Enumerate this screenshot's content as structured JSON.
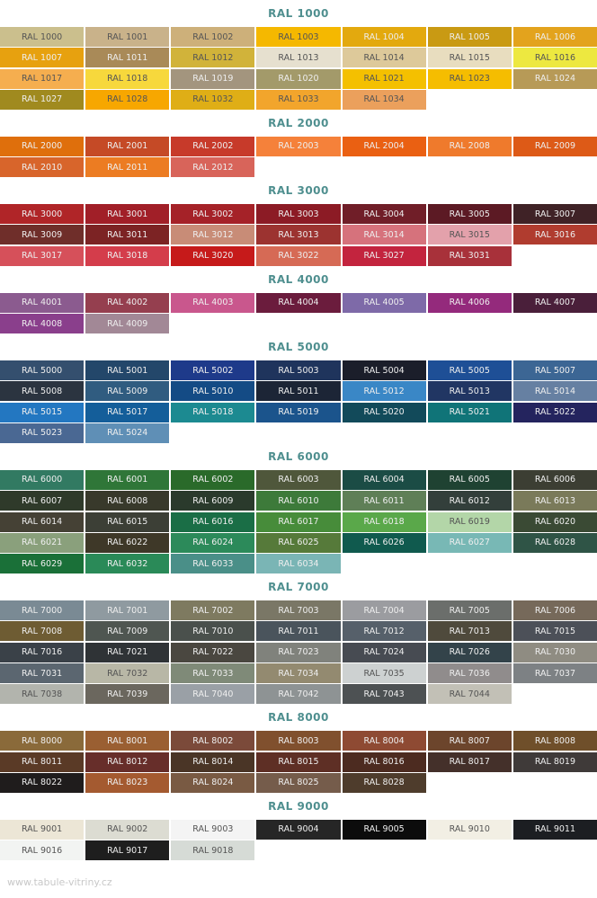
{
  "sections": [
    {
      "title": "RAL 1000",
      "swatches": [
        {
          "label": "RAL 1000",
          "color": "#cbbf8d"
        },
        {
          "label": "RAL 1001",
          "color": "#c9b28a"
        },
        {
          "label": "RAL 1002",
          "color": "#cdb07a"
        },
        {
          "label": "RAL 1003",
          "color": "#f5b800"
        },
        {
          "label": "RAL 1004",
          "color": "#e3a90e"
        },
        {
          "label": "RAL 1005",
          "color": "#c99a13"
        },
        {
          "label": "RAL 1006",
          "color": "#e3a31d"
        },
        {
          "label": "RAL 1007",
          "color": "#e7a10f"
        },
        {
          "label": "RAL 1011",
          "color": "#a98a58"
        },
        {
          "label": "RAL 1012",
          "color": "#d1b33a"
        },
        {
          "label": "RAL 1013",
          "color": "#e6e0cf"
        },
        {
          "label": "RAL 1014",
          "color": "#ddc99a"
        },
        {
          "label": "RAL 1015",
          "color": "#e8ddbf"
        },
        {
          "label": "RAL 1016",
          "color": "#ede840"
        },
        {
          "label": "RAL 1017",
          "color": "#f5ae4f"
        },
        {
          "label": "RAL 1018",
          "color": "#f7d83c"
        },
        {
          "label": "RAL 1019",
          "color": "#a3957e"
        },
        {
          "label": "RAL 1020",
          "color": "#a39a6a"
        },
        {
          "label": "RAL 1021",
          "color": "#f4c000"
        },
        {
          "label": "RAL 1023",
          "color": "#f5bd00"
        },
        {
          "label": "RAL 1024",
          "color": "#b79a57"
        },
        {
          "label": "RAL 1027",
          "color": "#a08a1f"
        },
        {
          "label": "RAL 1028",
          "color": "#f7a700"
        },
        {
          "label": "RAL 1032",
          "color": "#dfae16"
        },
        {
          "label": "RAL 1033",
          "color": "#f2a52c"
        },
        {
          "label": "RAL 1034",
          "color": "#eba05c"
        }
      ]
    },
    {
      "title": "RAL 2000",
      "swatches": [
        {
          "label": "RAL 2000",
          "color": "#df6f0c"
        },
        {
          "label": "RAL 2001",
          "color": "#c54a26"
        },
        {
          "label": "RAL 2002",
          "color": "#c73a2a"
        },
        {
          "label": "RAL 2003",
          "color": "#f5813a"
        },
        {
          "label": "RAL 2004",
          "color": "#ea6012"
        },
        {
          "label": "RAL 2008",
          "color": "#ef7a2c"
        },
        {
          "label": "RAL 2009",
          "color": "#dd5a17"
        },
        {
          "label": "RAL 2010",
          "color": "#d8652b"
        },
        {
          "label": "RAL 2011",
          "color": "#ec7c22"
        },
        {
          "label": "RAL 2012",
          "color": "#d8645a"
        }
      ]
    },
    {
      "title": "RAL 3000",
      "swatches": [
        {
          "label": "RAL 3000",
          "color": "#b02528"
        },
        {
          "label": "RAL 3001",
          "color": "#a11f28"
        },
        {
          "label": "RAL 3002",
          "color": "#a52228"
        },
        {
          "label": "RAL 3003",
          "color": "#8c1b25"
        },
        {
          "label": "RAL 3004",
          "color": "#701e28"
        },
        {
          "label": "RAL 3005",
          "color": "#5c1a24"
        },
        {
          "label": "RAL 3007",
          "color": "#3f2226"
        },
        {
          "label": "RAL 3009",
          "color": "#6f2e2a"
        },
        {
          "label": "RAL 3011",
          "color": "#7c2324"
        },
        {
          "label": "RAL 3012",
          "color": "#c88c77"
        },
        {
          "label": "RAL 3013",
          "color": "#9c3330"
        },
        {
          "label": "RAL 3014",
          "color": "#d6727c"
        },
        {
          "label": "RAL 3015",
          "color": "#e3a1ab"
        },
        {
          "label": "RAL 3016",
          "color": "#b03c2f"
        },
        {
          "label": "RAL 3017",
          "color": "#d6505a"
        },
        {
          "label": "RAL 3018",
          "color": "#d43d4b"
        },
        {
          "label": "RAL 3020",
          "color": "#c61a1a"
        },
        {
          "label": "RAL 3022",
          "color": "#d66a55"
        },
        {
          "label": "RAL 3027",
          "color": "#c3243e"
        },
        {
          "label": "RAL 3031",
          "color": "#a8313a"
        }
      ]
    },
    {
      "title": "RAL 4000",
      "swatches": [
        {
          "label": "RAL 4001",
          "color": "#8b5b8f"
        },
        {
          "label": "RAL 4002",
          "color": "#953f4f"
        },
        {
          "label": "RAL 4003",
          "color": "#c9578d"
        },
        {
          "label": "RAL 4004",
          "color": "#6b1c3d"
        },
        {
          "label": "RAL 4005",
          "color": "#7e6aa8"
        },
        {
          "label": "RAL 4006",
          "color": "#942a7c"
        },
        {
          "label": "RAL 4007",
          "color": "#4a1f3a"
        },
        {
          "label": "RAL 4008",
          "color": "#8a3f8c"
        },
        {
          "label": "RAL 4009",
          "color": "#a28896"
        }
      ]
    },
    {
      "title": "RAL 5000",
      "swatches": [
        {
          "label": "RAL 5000",
          "color": "#344f6e"
        },
        {
          "label": "RAL 5001",
          "color": "#23476a"
        },
        {
          "label": "RAL 5002",
          "color": "#1e3a8a"
        },
        {
          "label": "RAL 5003",
          "color": "#1f345c"
        },
        {
          "label": "RAL 5004",
          "color": "#1b1e2a"
        },
        {
          "label": "RAL 5005",
          "color": "#1e4f96"
        },
        {
          "label": "RAL 5007",
          "color": "#3c6694"
        },
        {
          "label": "RAL 5008",
          "color": "#2b3440"
        },
        {
          "label": "RAL 5009",
          "color": "#305c80"
        },
        {
          "label": "RAL 5010",
          "color": "#144b85"
        },
        {
          "label": "RAL 5011",
          "color": "#1c2536"
        },
        {
          "label": "RAL 5012",
          "color": "#3a87c6"
        },
        {
          "label": "RAL 5013",
          "color": "#213663"
        },
        {
          "label": "RAL 5014",
          "color": "#6680a2"
        },
        {
          "label": "RAL 5015",
          "color": "#2377c1"
        },
        {
          "label": "RAL 5017",
          "color": "#145e9a"
        },
        {
          "label": "RAL 5018",
          "color": "#1c8a91"
        },
        {
          "label": "RAL 5019",
          "color": "#1b548c"
        },
        {
          "label": "RAL 5020",
          "color": "#124a5a"
        },
        {
          "label": "RAL 5021",
          "color": "#107478"
        },
        {
          "label": "RAL 5022",
          "color": "#24245e"
        },
        {
          "label": "RAL 5023",
          "color": "#4a6893"
        },
        {
          "label": "RAL 5024",
          "color": "#5f8fb6"
        }
      ]
    },
    {
      "title": "RAL 6000",
      "swatches": [
        {
          "label": "RAL 6000",
          "color": "#327a62"
        },
        {
          "label": "RAL 6001",
          "color": "#2f7638"
        },
        {
          "label": "RAL 6002",
          "color": "#2a6a2a"
        },
        {
          "label": "RAL 6003",
          "color": "#4f573b"
        },
        {
          "label": "RAL 6004",
          "color": "#1b4c45"
        },
        {
          "label": "RAL 6005",
          "color": "#1f4232"
        },
        {
          "label": "RAL 6006",
          "color": "#3c3e33"
        },
        {
          "label": "RAL 6007",
          "color": "#2f3a2a"
        },
        {
          "label": "RAL 6008",
          "color": "#38392b"
        },
        {
          "label": "RAL 6009",
          "color": "#2a3a2c"
        },
        {
          "label": "RAL 6010",
          "color": "#3d7a3a"
        },
        {
          "label": "RAL 6011",
          "color": "#5f7f57"
        },
        {
          "label": "RAL 6012",
          "color": "#333f3b"
        },
        {
          "label": "RAL 6013",
          "color": "#7a7a5a"
        },
        {
          "label": "RAL 6014",
          "color": "#454135"
        },
        {
          "label": "RAL 6015",
          "color": "#3c3f36"
        },
        {
          "label": "RAL 6016",
          "color": "#1a6e46"
        },
        {
          "label": "RAL 6017",
          "color": "#478c3a"
        },
        {
          "label": "RAL 6018",
          "color": "#5aa84a"
        },
        {
          "label": "RAL 6019",
          "color": "#b3d6a8"
        },
        {
          "label": "RAL 6020",
          "color": "#3a4a34"
        },
        {
          "label": "RAL 6021",
          "color": "#8aa07c"
        },
        {
          "label": "RAL 6022",
          "color": "#3e3828"
        },
        {
          "label": "RAL 6024",
          "color": "#2c8a5a"
        },
        {
          "label": "RAL 6025",
          "color": "#567a3a"
        },
        {
          "label": "RAL 6026",
          "color": "#105a4e"
        },
        {
          "label": "RAL 6027",
          "color": "#78b8b5"
        },
        {
          "label": "RAL 6028",
          "color": "#2f5446"
        },
        {
          "label": "RAL 6029",
          "color": "#1a7038"
        },
        {
          "label": "RAL 6032",
          "color": "#2a8a58"
        },
        {
          "label": "RAL 6033",
          "color": "#4a8f88"
        },
        {
          "label": "RAL 6034",
          "color": "#7ab5b5"
        }
      ]
    },
    {
      "title": "RAL 7000",
      "swatches": [
        {
          "label": "RAL 7000",
          "color": "#7a8a94"
        },
        {
          "label": "RAL 7001",
          "color": "#8f9aa0"
        },
        {
          "label": "RAL 7002",
          "color": "#7e7a60"
        },
        {
          "label": "RAL 7003",
          "color": "#7a7766"
        },
        {
          "label": "RAL 7004",
          "color": "#9b9ca0"
        },
        {
          "label": "RAL 7005",
          "color": "#6b6e6b"
        },
        {
          "label": "RAL 7006",
          "color": "#76695a"
        },
        {
          "label": "RAL 7008",
          "color": "#6e5c33"
        },
        {
          "label": "RAL 7009",
          "color": "#4f5651"
        },
        {
          "label": "RAL 7010",
          "color": "#4a504c"
        },
        {
          "label": "RAL 7011",
          "color": "#4a545c"
        },
        {
          "label": "RAL 7012",
          "color": "#56606a"
        },
        {
          "label": "RAL 7013",
          "color": "#4f4a3c"
        },
        {
          "label": "RAL 7015",
          "color": "#4c5058"
        },
        {
          "label": "RAL 7016",
          "color": "#3a4148"
        },
        {
          "label": "RAL 7021",
          "color": "#2f3336"
        },
        {
          "label": "RAL 7022",
          "color": "#4a4740"
        },
        {
          "label": "RAL 7023",
          "color": "#80827c"
        },
        {
          "label": "RAL 7024",
          "color": "#474b52"
        },
        {
          "label": "RAL 7026",
          "color": "#33434a"
        },
        {
          "label": "RAL 7030",
          "color": "#8f8c82"
        },
        {
          "label": "RAL 7031",
          "color": "#5b6670"
        },
        {
          "label": "RAL 7032",
          "color": "#b8b7a6"
        },
        {
          "label": "RAL 7033",
          "color": "#7f8a78"
        },
        {
          "label": "RAL 7034",
          "color": "#938a70"
        },
        {
          "label": "RAL 7035",
          "color": "#cdd1d1"
        },
        {
          "label": "RAL 7036",
          "color": "#908c8c"
        },
        {
          "label": "RAL 7037",
          "color": "#7d8184"
        },
        {
          "label": "RAL 7038",
          "color": "#b2b4ad"
        },
        {
          "label": "RAL 7039",
          "color": "#6b675e"
        },
        {
          "label": "RAL 7040",
          "color": "#9aa0a6"
        },
        {
          "label": "RAL 7042",
          "color": "#8e9394"
        },
        {
          "label": "RAL 7043",
          "color": "#4d5153"
        },
        {
          "label": "RAL 7044",
          "color": "#c2c0b6"
        }
      ]
    },
    {
      "title": "RAL 8000",
      "swatches": [
        {
          "label": "RAL 8000",
          "color": "#8a6a3a"
        },
        {
          "label": "RAL 8001",
          "color": "#9a5f32"
        },
        {
          "label": "RAL 8002",
          "color": "#7b4a3a"
        },
        {
          "label": "RAL 8003",
          "color": "#80502e"
        },
        {
          "label": "RAL 8004",
          "color": "#8e4a33"
        },
        {
          "label": "RAL 8007",
          "color": "#6c452c"
        },
        {
          "label": "RAL 8008",
          "color": "#6f4f2a"
        },
        {
          "label": "RAL 8011",
          "color": "#5a3a26"
        },
        {
          "label": "RAL 8012",
          "color": "#672e2a"
        },
        {
          "label": "RAL 8014",
          "color": "#4a3526"
        },
        {
          "label": "RAL 8015",
          "color": "#5e2f25"
        },
        {
          "label": "RAL 8016",
          "color": "#4c2b20"
        },
        {
          "label": "RAL 8017",
          "color": "#44302a"
        },
        {
          "label": "RAL 8019",
          "color": "#3f3a39"
        },
        {
          "label": "RAL 8022",
          "color": "#1f1c1c"
        },
        {
          "label": "RAL 8023",
          "color": "#a45a30"
        },
        {
          "label": "RAL 8024",
          "color": "#795a43"
        },
        {
          "label": "RAL 8025",
          "color": "#755c4b"
        },
        {
          "label": "RAL 8028",
          "color": "#4e3c2c"
        }
      ]
    },
    {
      "title": "RAL 9000",
      "swatches": [
        {
          "label": "RAL 9001",
          "color": "#ece6d6"
        },
        {
          "label": "RAL 9002",
          "color": "#dcdcd2"
        },
        {
          "label": "RAL 9003",
          "color": "#f4f4f4"
        },
        {
          "label": "RAL 9004",
          "color": "#262626"
        },
        {
          "label": "RAL 9005",
          "color": "#0c0c0c"
        },
        {
          "label": "RAL 9010",
          "color": "#f2efe4"
        },
        {
          "label": "RAL 9011",
          "color": "#1c1e22"
        },
        {
          "label": "RAL 9016",
          "color": "#f2f4f2"
        },
        {
          "label": "RAL 9017",
          "color": "#1e1e1e"
        },
        {
          "label": "RAL 9018",
          "color": "#d6dbd6"
        }
      ]
    }
  ],
  "footer": "www.tabule-vitriny.cz"
}
